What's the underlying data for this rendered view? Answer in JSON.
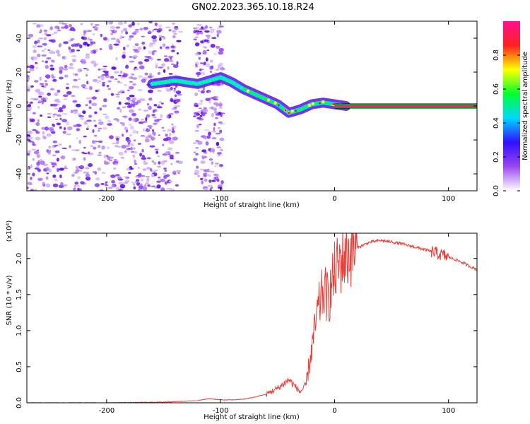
{
  "figure": {
    "title": "GN02.2023.365.10.18.R24"
  },
  "colors": {
    "snr_line": "#e8403a",
    "frame": "#000000"
  },
  "chart_data": [
    {
      "type": "heatmap",
      "name": "spectrogram",
      "xlabel": "Height of straight line (km)",
      "ylabel": "Frequency (Hz)",
      "xlim": [
        -270,
        125
      ],
      "ylim": [
        -50,
        50
      ],
      "x_ticks": [
        -200,
        -100,
        0,
        100
      ],
      "y_ticks": [
        -40,
        -20,
        0,
        20,
        40
      ],
      "colorbar": {
        "label": "Normalized spectral amplitude",
        "range": [
          0,
          1
        ],
        "ticks": [
          0.0,
          0.2,
          0.4,
          0.6,
          0.8
        ],
        "colors": [
          "#ffffff",
          "#9a46f0",
          "#3010ff",
          "#00d7ff",
          "#00ff30",
          "#ffff00",
          "#ff2020",
          "#ff1090"
        ]
      },
      "ridge_track": {
        "x": [
          -160,
          -150,
          -140,
          -130,
          -120,
          -110,
          -100,
          -90,
          -80,
          -70,
          -60,
          -50,
          -40,
          -30,
          -20,
          -10,
          0,
          10
        ],
        "y": [
          13,
          14,
          15,
          14,
          13,
          15,
          17,
          14,
          10,
          7,
          4,
          1,
          -4,
          -2,
          1,
          2,
          1,
          0
        ]
      },
      "carrier_line": {
        "x": [
          0,
          125
        ],
        "y": 0
      }
    },
    {
      "type": "line",
      "name": "snr",
      "xlabel": "Height of straight line (km)",
      "ylabel": "SNR (10 * v/v)",
      "y_multiplier": "(x10⁴)",
      "xlim": [
        -270,
        125
      ],
      "ylim": [
        0,
        2.35
      ],
      "x_ticks": [
        -200,
        -100,
        0,
        100
      ],
      "y_ticks": [
        0.0,
        0.5,
        1.0,
        1.5,
        2.0
      ],
      "series": [
        {
          "x": [
            -270,
            -200,
            -150,
            -120,
            -110,
            -100,
            -90,
            -80,
            -70,
            -60,
            -50,
            -40,
            -30,
            -25,
            -20,
            -15,
            -10,
            -5,
            0,
            5,
            10,
            15,
            20,
            30,
            40,
            50,
            60,
            70,
            80,
            90,
            100,
            110,
            120,
            125
          ],
          "y": [
            0.0,
            0.0,
            0.01,
            0.03,
            0.06,
            0.04,
            0.04,
            0.05,
            0.08,
            0.12,
            0.2,
            0.32,
            0.15,
            0.25,
            0.75,
            1.25,
            1.55,
            1.45,
            1.8,
            1.95,
            2.05,
            2.1,
            2.15,
            2.22,
            2.25,
            2.23,
            2.2,
            2.16,
            2.12,
            2.07,
            2.02,
            1.96,
            1.88,
            1.85
          ]
        }
      ]
    }
  ]
}
